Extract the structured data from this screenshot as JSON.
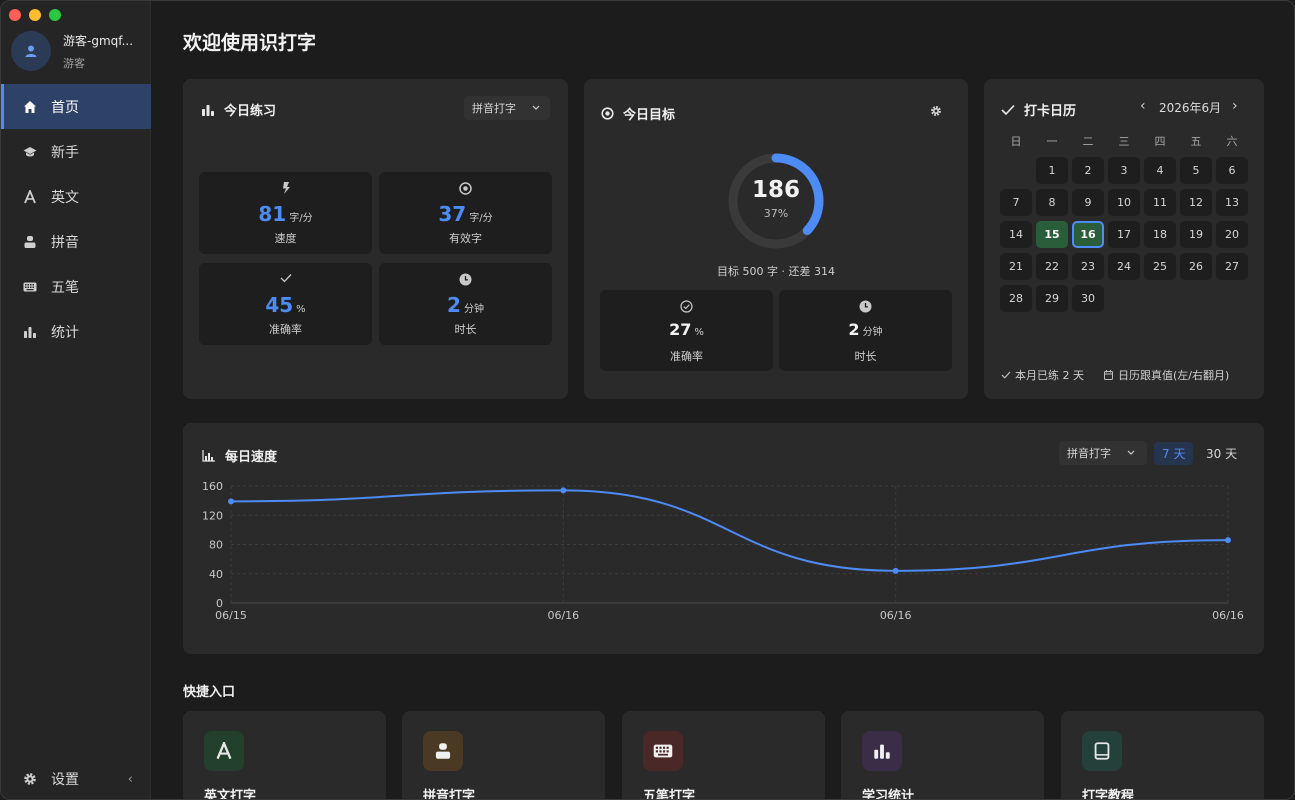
{
  "app": {
    "title": "欢迎使用识打字"
  },
  "user": {
    "name": "游客-gmqf...",
    "role": "游客"
  },
  "sidebar": {
    "items": [
      {
        "label": "首页",
        "icon": "home-icon",
        "active": true
      },
      {
        "label": "新手",
        "icon": "graduation-cap-icon"
      },
      {
        "label": "英文",
        "icon": "letter-a-icon"
      },
      {
        "label": "拼音",
        "icon": "person-icon"
      },
      {
        "label": "五笔",
        "icon": "keyboard-icon"
      },
      {
        "label": "统计",
        "icon": "bar-chart-icon"
      }
    ],
    "settings_label": "设置",
    "collapse_glyph": "‹"
  },
  "practice": {
    "title": "今日练习",
    "mode": "拼音打字",
    "stats": [
      {
        "value": "81",
        "unit": "字/分",
        "label": "速度",
        "icon": "lightning-icon"
      },
      {
        "value": "37",
        "unit": "字/分",
        "label": "有效字",
        "icon": "target-icon"
      },
      {
        "value": "45",
        "unit": "%",
        "label": "准确率",
        "icon": "check-icon"
      },
      {
        "value": "2",
        "unit": "分钟",
        "label": "时长",
        "icon": "clock-icon"
      }
    ]
  },
  "goal": {
    "title": "今日目标",
    "current": "186",
    "percent_text": "37%",
    "progress": 0.37,
    "summary": "目标 500 字 · 还差 314",
    "stats": [
      {
        "value": "27",
        "unit": "%",
        "label": "准确率",
        "icon": "check-circle-icon"
      },
      {
        "value": "2",
        "unit": "分钟",
        "label": "时长",
        "icon": "clock-icon"
      }
    ]
  },
  "calendar": {
    "title": "打卡日历",
    "month": "2026年6月",
    "prev": "‹",
    "next": "›",
    "weekdays": [
      "日",
      "一",
      "二",
      "三",
      "四",
      "五",
      "六"
    ],
    "first_weekday": 1,
    "days": 30,
    "done_days": [
      15,
      16
    ],
    "today": 16,
    "footer_count": "本月已练 2 天",
    "footer_hint": "日历跟真值(左/右翻月)"
  },
  "speed": {
    "title": "每日速度",
    "mode": "拼音打字",
    "ranges": [
      "7 天",
      "30 天"
    ],
    "active_range": "7 天"
  },
  "chart_data": {
    "type": "line",
    "x": [
      "06/15",
      "06/16",
      "06/16",
      "06/16"
    ],
    "series": [
      {
        "values": [
          139,
          154,
          44,
          86
        ]
      }
    ],
    "ylim": [
      0,
      160
    ],
    "yticks": [
      0,
      40,
      80,
      120,
      160
    ],
    "grid": true,
    "color": "#4d8bf5"
  },
  "quick": {
    "title": "快捷入口",
    "items": [
      {
        "label": "英文打字",
        "icon": "letter-a-icon",
        "bg": "#23402d",
        "fg": "#e8e8e8"
      },
      {
        "label": "拼音打字",
        "icon": "person-icon",
        "bg": "#4a3a24",
        "fg": "#f0f0f0"
      },
      {
        "label": "五笔打字",
        "icon": "keyboard-icon",
        "bg": "#4a2828",
        "fg": "#f0f0f0"
      },
      {
        "label": "学习统计",
        "icon": "bar-chart-icon",
        "bg": "#3a2d48",
        "fg": "#f0f0f0"
      },
      {
        "label": "打字教程",
        "icon": "book-icon",
        "bg": "#24403a",
        "fg": "#e8e8e8"
      }
    ]
  },
  "colors": {
    "accent": "#4d8bf5",
    "done": "#2a5e3b",
    "card": "#2a2a2a"
  }
}
